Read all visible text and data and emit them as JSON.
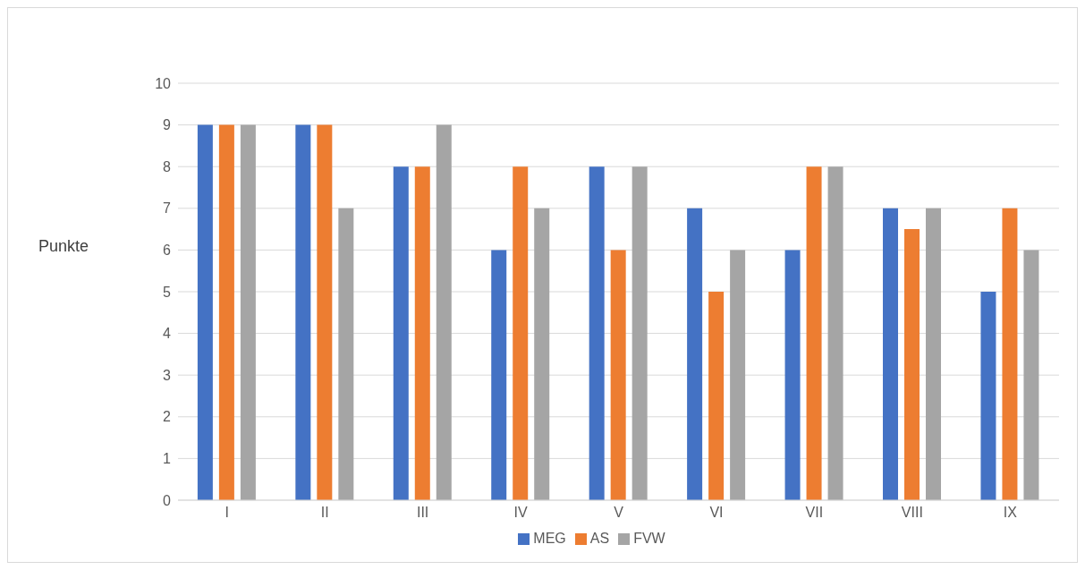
{
  "chart_data": {
    "type": "bar",
    "ylabel": "Punkte",
    "categories": [
      "I",
      "II",
      "III",
      "IV",
      "V",
      "VI",
      "VII",
      "VIII",
      "IX"
    ],
    "series": [
      {
        "name": "MEG",
        "color": "#4472c4",
        "values": [
          9,
          9,
          8,
          6,
          8,
          7,
          6,
          7,
          5
        ]
      },
      {
        "name": "AS",
        "color": "#ed7d31",
        "values": [
          9,
          9,
          8,
          8,
          6,
          5,
          8,
          6.5,
          7
        ]
      },
      {
        "name": "FVW",
        "color": "#a5a5a5",
        "values": [
          9,
          7,
          9,
          7,
          8,
          6,
          8,
          7,
          6
        ]
      }
    ],
    "ylim": [
      0,
      10
    ],
    "yticks": [
      0,
      1,
      2,
      3,
      4,
      5,
      6,
      7,
      8,
      9,
      10
    ],
    "grid": "y",
    "legend": "bottom"
  }
}
